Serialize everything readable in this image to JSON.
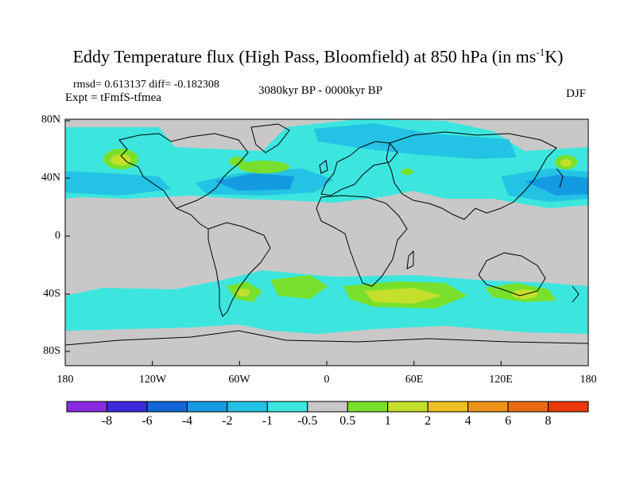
{
  "title": {
    "main": "Eddy Temperature flux (High Pass, Bloomfield) at 850 hPa (in ms",
    "sup": "-1",
    "end": "K)"
  },
  "stats": "rmsd= 0.613137 diff= -0.182308",
  "period": "3080kyr BP - 0000kyr BP",
  "expt": "Expt = tFmfS-tfmea",
  "season": "DJF",
  "lat_labels": [
    "80N",
    "40N",
    "0",
    "40S",
    "80S"
  ],
  "lon_labels": [
    "180",
    "120W",
    "60W",
    "0",
    "60E",
    "120E",
    "180"
  ],
  "colorbar": {
    "labels": [
      "-8",
      "-6",
      "-4",
      "-2",
      "-1",
      "-0.5",
      "0.5",
      "1",
      "2",
      "4",
      "6",
      "8"
    ],
    "colors": [
      "#8a2be2",
      "#3a2ad8",
      "#1266d8",
      "#149ae0",
      "#24c2e4",
      "#3ce6de",
      "#c8c8c8",
      "#78e02c",
      "#c4e02c",
      "#ecc022",
      "#ec9218",
      "#ea6a12",
      "#e8380c"
    ]
  },
  "map_colors": {
    "ocean_background": "#c8c8c8",
    "negative_weak": "#3ce6de",
    "negative_mid": "#24c2e4",
    "negative_strong": "#149ae0",
    "positive_weak": "#78e02c",
    "positive_mid": "#c4e02c",
    "positive_strong": "#ecc022"
  }
}
